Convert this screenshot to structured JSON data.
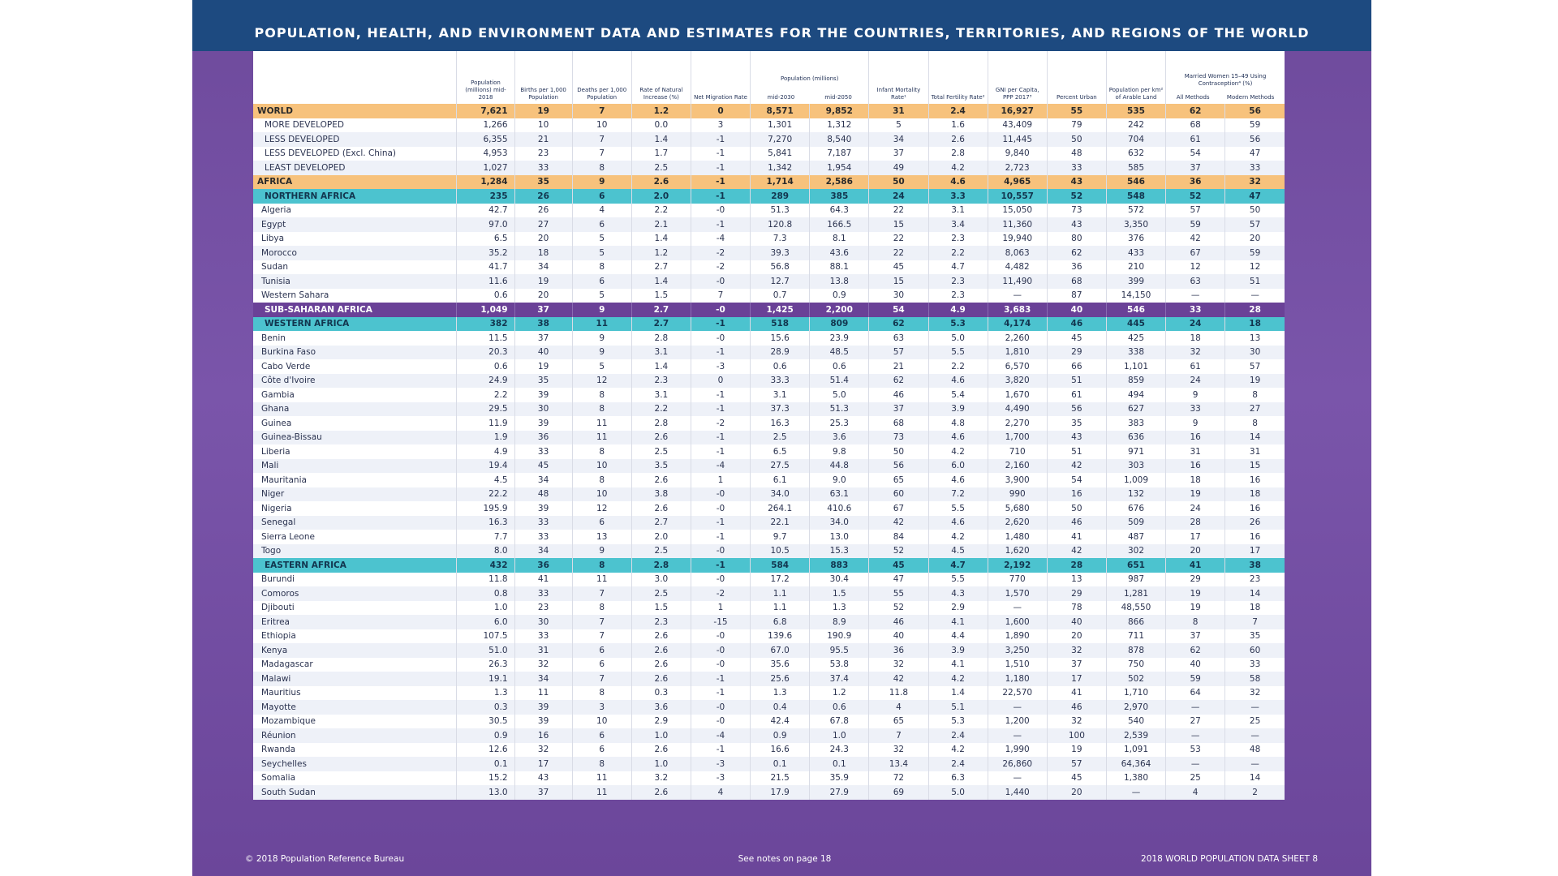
{
  "title": "POPULATION, HEALTH, AND ENVIRONMENT DATA AND ESTIMATES FOR THE COUNTRIES, TERRITORIES, AND REGIONS OF THE WORLD",
  "headers": {
    "pop": "Population (millions) mid-2018",
    "births": "Births per 1,000 Population",
    "deaths": "Deaths per 1,000 Population",
    "natural_increase": "Rate of Natural Increase (%)",
    "migration": "Net Migration Rate",
    "projected_group": "Population (millions)",
    "mid2030": "mid-2030",
    "mid2050": "mid-2050",
    "infant": "Infant Mortality Rate¹",
    "fertility": "Total Fertility Rate²",
    "gni": "GNI per Capita, PPP 2017³",
    "urban": "Percent Urban",
    "arable": "Population per km² of Arable Land",
    "contra_group": "Married Women 15–49 Using Contraception⁴ (%)",
    "all_methods": "All Methods",
    "modern_methods": "Modern Methods"
  },
  "rows": [
    {
      "name": "WORLD",
      "cat": "world",
      "v": [
        "7,621",
        "19",
        "7",
        "1.2",
        "0",
        "8,571",
        "9,852",
        "31",
        "2.4",
        "16,927",
        "55",
        "535",
        "62",
        "56"
      ]
    },
    {
      "name": "MORE DEVELOPED",
      "cat": "sub",
      "v": [
        "1,266",
        "10",
        "10",
        "0.0",
        "3",
        "1,301",
        "1,312",
        "5",
        "1.6",
        "43,409",
        "79",
        "242",
        "68",
        "59"
      ]
    },
    {
      "name": "LESS DEVELOPED",
      "cat": "sub",
      "v": [
        "6,355",
        "21",
        "7",
        "1.4",
        "-1",
        "7,270",
        "8,540",
        "34",
        "2.6",
        "11,445",
        "50",
        "704",
        "61",
        "56"
      ]
    },
    {
      "name": "LESS DEVELOPED (Excl. China)",
      "cat": "sub",
      "v": [
        "4,953",
        "23",
        "7",
        "1.7",
        "-1",
        "5,841",
        "7,187",
        "37",
        "2.8",
        "9,840",
        "48",
        "632",
        "54",
        "47"
      ]
    },
    {
      "name": "LEAST DEVELOPED",
      "cat": "sub",
      "v": [
        "1,027",
        "33",
        "8",
        "2.5",
        "-1",
        "1,342",
        "1,954",
        "49",
        "4.2",
        "2,723",
        "33",
        "585",
        "37",
        "33"
      ]
    },
    {
      "name": "AFRICA",
      "cat": "world",
      "v": [
        "1,284",
        "35",
        "9",
        "2.6",
        "-1",
        "1,714",
        "2,586",
        "50",
        "4.6",
        "4,965",
        "43",
        "546",
        "36",
        "32"
      ]
    },
    {
      "name": "NORTHERN AFRICA",
      "cat": "region",
      "v": [
        "235",
        "26",
        "6",
        "2.0",
        "-1",
        "289",
        "385",
        "24",
        "3.3",
        "10,557",
        "52",
        "548",
        "52",
        "47"
      ]
    },
    {
      "name": "Algeria",
      "cat": "country",
      "v": [
        "42.7",
        "26",
        "4",
        "2.2",
        "-0",
        "51.3",
        "64.3",
        "22",
        "3.1",
        "15,050",
        "73",
        "572",
        "57",
        "50"
      ]
    },
    {
      "name": "Egypt",
      "cat": "country",
      "v": [
        "97.0",
        "27",
        "6",
        "2.1",
        "-1",
        "120.8",
        "166.5",
        "15",
        "3.4",
        "11,360",
        "43",
        "3,350",
        "59",
        "57"
      ]
    },
    {
      "name": "Libya",
      "cat": "country",
      "v": [
        "6.5",
        "20",
        "5",
        "1.4",
        "-4",
        "7.3",
        "8.1",
        "22",
        "2.3",
        "19,940",
        "80",
        "376",
        "42",
        "20"
      ]
    },
    {
      "name": "Morocco",
      "cat": "country",
      "v": [
        "35.2",
        "18",
        "5",
        "1.2",
        "-2",
        "39.3",
        "43.6",
        "22",
        "2.2",
        "8,063",
        "62",
        "433",
        "67",
        "59"
      ]
    },
    {
      "name": "Sudan",
      "cat": "country",
      "v": [
        "41.7",
        "34",
        "8",
        "2.7",
        "-2",
        "56.8",
        "88.1",
        "45",
        "4.7",
        "4,482",
        "36",
        "210",
        "12",
        "12"
      ]
    },
    {
      "name": "Tunisia",
      "cat": "country",
      "v": [
        "11.6",
        "19",
        "6",
        "1.4",
        "-0",
        "12.7",
        "13.8",
        "15",
        "2.3",
        "11,490",
        "68",
        "399",
        "63",
        "51"
      ]
    },
    {
      "name": "Western Sahara",
      "cat": "country",
      "v": [
        "0.6",
        "20",
        "5",
        "1.5",
        "7",
        "0.7",
        "0.9",
        "30",
        "2.3",
        "—",
        "87",
        "14,150",
        "—",
        "—"
      ]
    },
    {
      "name": "SUB-SAHARAN AFRICA",
      "cat": "subsah",
      "v": [
        "1,049",
        "37",
        "9",
        "2.7",
        "-0",
        "1,425",
        "2,200",
        "54",
        "4.9",
        "3,683",
        "40",
        "546",
        "33",
        "28"
      ]
    },
    {
      "name": "WESTERN AFRICA",
      "cat": "region",
      "v": [
        "382",
        "38",
        "11",
        "2.7",
        "-1",
        "518",
        "809",
        "62",
        "5.3",
        "4,174",
        "46",
        "445",
        "24",
        "18"
      ]
    },
    {
      "name": "Benin",
      "cat": "country",
      "v": [
        "11.5",
        "37",
        "9",
        "2.8",
        "-0",
        "15.6",
        "23.9",
        "63",
        "5.0",
        "2,260",
        "45",
        "425",
        "18",
        "13"
      ]
    },
    {
      "name": "Burkina Faso",
      "cat": "country",
      "v": [
        "20.3",
        "40",
        "9",
        "3.1",
        "-1",
        "28.9",
        "48.5",
        "57",
        "5.5",
        "1,810",
        "29",
        "338",
        "32",
        "30"
      ]
    },
    {
      "name": "Cabo Verde",
      "cat": "country",
      "v": [
        "0.6",
        "19",
        "5",
        "1.4",
        "-3",
        "0.6",
        "0.6",
        "21",
        "2.2",
        "6,570",
        "66",
        "1,101",
        "61",
        "57"
      ]
    },
    {
      "name": "Côte d'Ivoire",
      "cat": "country",
      "v": [
        "24.9",
        "35",
        "12",
        "2.3",
        "0",
        "33.3",
        "51.4",
        "62",
        "4.6",
        "3,820",
        "51",
        "859",
        "24",
        "19"
      ]
    },
    {
      "name": "Gambia",
      "cat": "country",
      "v": [
        "2.2",
        "39",
        "8",
        "3.1",
        "-1",
        "3.1",
        "5.0",
        "46",
        "5.4",
        "1,670",
        "61",
        "494",
        "9",
        "8"
      ]
    },
    {
      "name": "Ghana",
      "cat": "country",
      "v": [
        "29.5",
        "30",
        "8",
        "2.2",
        "-1",
        "37.3",
        "51.3",
        "37",
        "3.9",
        "4,490",
        "56",
        "627",
        "33",
        "27"
      ]
    },
    {
      "name": "Guinea",
      "cat": "country",
      "v": [
        "11.9",
        "39",
        "11",
        "2.8",
        "-2",
        "16.3",
        "25.3",
        "68",
        "4.8",
        "2,270",
        "35",
        "383",
        "9",
        "8"
      ]
    },
    {
      "name": "Guinea-Bissau",
      "cat": "country",
      "v": [
        "1.9",
        "36",
        "11",
        "2.6",
        "-1",
        "2.5",
        "3.6",
        "73",
        "4.6",
        "1,700",
        "43",
        "636",
        "16",
        "14"
      ]
    },
    {
      "name": "Liberia",
      "cat": "country",
      "v": [
        "4.9",
        "33",
        "8",
        "2.5",
        "-1",
        "6.5",
        "9.8",
        "50",
        "4.2",
        "710",
        "51",
        "971",
        "31",
        "31"
      ]
    },
    {
      "name": "Mali",
      "cat": "country",
      "v": [
        "19.4",
        "45",
        "10",
        "3.5",
        "-4",
        "27.5",
        "44.8",
        "56",
        "6.0",
        "2,160",
        "42",
        "303",
        "16",
        "15"
      ]
    },
    {
      "name": "Mauritania",
      "cat": "country",
      "v": [
        "4.5",
        "34",
        "8",
        "2.6",
        "1",
        "6.1",
        "9.0",
        "65",
        "4.6",
        "3,900",
        "54",
        "1,009",
        "18",
        "16"
      ]
    },
    {
      "name": "Niger",
      "cat": "country",
      "v": [
        "22.2",
        "48",
        "10",
        "3.8",
        "-0",
        "34.0",
        "63.1",
        "60",
        "7.2",
        "990",
        "16",
        "132",
        "19",
        "18"
      ]
    },
    {
      "name": "Nigeria",
      "cat": "country",
      "v": [
        "195.9",
        "39",
        "12",
        "2.6",
        "-0",
        "264.1",
        "410.6",
        "67",
        "5.5",
        "5,680",
        "50",
        "676",
        "24",
        "16"
      ]
    },
    {
      "name": "Senegal",
      "cat": "country",
      "v": [
        "16.3",
        "33",
        "6",
        "2.7",
        "-1",
        "22.1",
        "34.0",
        "42",
        "4.6",
        "2,620",
        "46",
        "509",
        "28",
        "26"
      ]
    },
    {
      "name": "Sierra Leone",
      "cat": "country",
      "v": [
        "7.7",
        "33",
        "13",
        "2.0",
        "-1",
        "9.7",
        "13.0",
        "84",
        "4.2",
        "1,480",
        "41",
        "487",
        "17",
        "16"
      ]
    },
    {
      "name": "Togo",
      "cat": "country",
      "v": [
        "8.0",
        "34",
        "9",
        "2.5",
        "-0",
        "10.5",
        "15.3",
        "52",
        "4.5",
        "1,620",
        "42",
        "302",
        "20",
        "17"
      ]
    },
    {
      "name": "EASTERN AFRICA",
      "cat": "region",
      "v": [
        "432",
        "36",
        "8",
        "2.8",
        "-1",
        "584",
        "883",
        "45",
        "4.7",
        "2,192",
        "28",
        "651",
        "41",
        "38"
      ]
    },
    {
      "name": "Burundi",
      "cat": "country",
      "v": [
        "11.8",
        "41",
        "11",
        "3.0",
        "-0",
        "17.2",
        "30.4",
        "47",
        "5.5",
        "770",
        "13",
        "987",
        "29",
        "23"
      ]
    },
    {
      "name": "Comoros",
      "cat": "country",
      "v": [
        "0.8",
        "33",
        "7",
        "2.5",
        "-2",
        "1.1",
        "1.5",
        "55",
        "4.3",
        "1,570",
        "29",
        "1,281",
        "19",
        "14"
      ]
    },
    {
      "name": "Djibouti",
      "cat": "country",
      "v": [
        "1.0",
        "23",
        "8",
        "1.5",
        "1",
        "1.1",
        "1.3",
        "52",
        "2.9",
        "—",
        "78",
        "48,550",
        "19",
        "18"
      ]
    },
    {
      "name": "Eritrea",
      "cat": "country",
      "v": [
        "6.0",
        "30",
        "7",
        "2.3",
        "-15",
        "6.8",
        "8.9",
        "46",
        "4.1",
        "1,600",
        "40",
        "866",
        "8",
        "7"
      ]
    },
    {
      "name": "Ethiopia",
      "cat": "country",
      "v": [
        "107.5",
        "33",
        "7",
        "2.6",
        "-0",
        "139.6",
        "190.9",
        "40",
        "4.4",
        "1,890",
        "20",
        "711",
        "37",
        "35"
      ]
    },
    {
      "name": "Kenya",
      "cat": "country",
      "v": [
        "51.0",
        "31",
        "6",
        "2.6",
        "-0",
        "67.0",
        "95.5",
        "36",
        "3.9",
        "3,250",
        "32",
        "878",
        "62",
        "60"
      ]
    },
    {
      "name": "Madagascar",
      "cat": "country",
      "v": [
        "26.3",
        "32",
        "6",
        "2.6",
        "-0",
        "35.6",
        "53.8",
        "32",
        "4.1",
        "1,510",
        "37",
        "750",
        "40",
        "33"
      ]
    },
    {
      "name": "Malawi",
      "cat": "country",
      "v": [
        "19.1",
        "34",
        "7",
        "2.6",
        "-1",
        "25.6",
        "37.4",
        "42",
        "4.2",
        "1,180",
        "17",
        "502",
        "59",
        "58"
      ]
    },
    {
      "name": "Mauritius",
      "cat": "country",
      "v": [
        "1.3",
        "11",
        "8",
        "0.3",
        "-1",
        "1.3",
        "1.2",
        "11.8",
        "1.4",
        "22,570",
        "41",
        "1,710",
        "64",
        "32"
      ]
    },
    {
      "name": "Mayotte",
      "cat": "country",
      "v": [
        "0.3",
        "39",
        "3",
        "3.6",
        "-0",
        "0.4",
        "0.6",
        "4",
        "5.1",
        "—",
        "46",
        "2,970",
        "—",
        "—"
      ]
    },
    {
      "name": "Mozambique",
      "cat": "country",
      "v": [
        "30.5",
        "39",
        "10",
        "2.9",
        "-0",
        "42.4",
        "67.8",
        "65",
        "5.3",
        "1,200",
        "32",
        "540",
        "27",
        "25"
      ]
    },
    {
      "name": "Réunion",
      "cat": "country",
      "v": [
        "0.9",
        "16",
        "6",
        "1.0",
        "-4",
        "0.9",
        "1.0",
        "7",
        "2.4",
        "—",
        "100",
        "2,539",
        "—",
        "—"
      ]
    },
    {
      "name": "Rwanda",
      "cat": "country",
      "v": [
        "12.6",
        "32",
        "6",
        "2.6",
        "-1",
        "16.6",
        "24.3",
        "32",
        "4.2",
        "1,990",
        "19",
        "1,091",
        "53",
        "48"
      ]
    },
    {
      "name": "Seychelles",
      "cat": "country",
      "v": [
        "0.1",
        "17",
        "8",
        "1.0",
        "-3",
        "0.1",
        "0.1",
        "13.4",
        "2.4",
        "26,860",
        "57",
        "64,364",
        "—",
        "—"
      ]
    },
    {
      "name": "Somalia",
      "cat": "country",
      "v": [
        "15.2",
        "43",
        "11",
        "3.2",
        "-3",
        "21.5",
        "35.9",
        "72",
        "6.3",
        "—",
        "45",
        "1,380",
        "25",
        "14"
      ]
    },
    {
      "name": "South Sudan",
      "cat": "country",
      "v": [
        "13.0",
        "37",
        "11",
        "2.6",
        "4",
        "17.9",
        "27.9",
        "69",
        "5.0",
        "1,440",
        "20",
        "—",
        "4",
        "2"
      ]
    }
  ],
  "footer": {
    "left": "© 2018 Population Reference Bureau",
    "center": "See notes on page 18",
    "right": "2018 WORLD POPULATION DATA SHEET  8"
  }
}
